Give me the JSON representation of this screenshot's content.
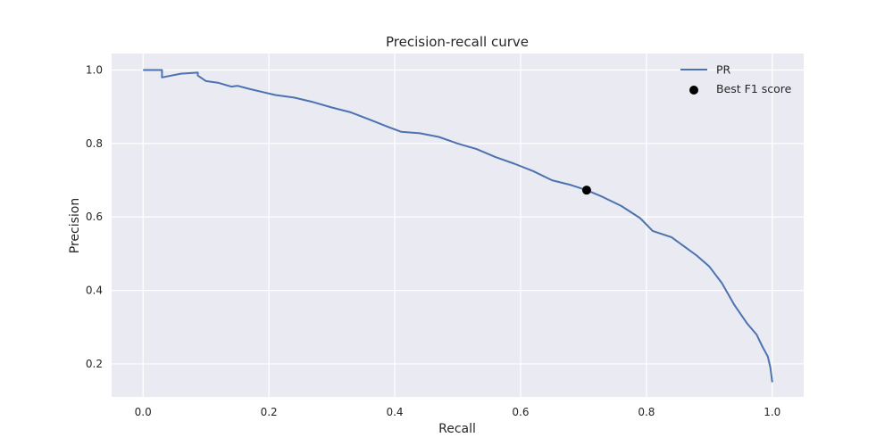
{
  "chart_data": {
    "type": "line",
    "title": "Precision-recall curve",
    "xlabel": "Recall",
    "ylabel": "Precision",
    "xlim": [
      -0.05,
      1.05
    ],
    "ylim": [
      0.11,
      1.045
    ],
    "x_ticks": [
      0.0,
      0.2,
      0.4,
      0.6,
      0.8,
      1.0
    ],
    "x_tick_labels": [
      "0.0",
      "0.2",
      "0.4",
      "0.6",
      "0.8",
      "1.0"
    ],
    "y_ticks": [
      0.2,
      0.4,
      0.6,
      0.8,
      1.0
    ],
    "y_tick_labels": [
      "0.2",
      "0.4",
      "0.6",
      "0.8",
      "1.0"
    ],
    "grid": true,
    "legend_position": "top-right",
    "colors": {
      "background": "#eaeaf2",
      "grid": "#ffffff",
      "line": "#4c72b0",
      "marker": "#000000"
    },
    "series": [
      {
        "name": "PR",
        "kind": "line",
        "x": [
          0.0,
          0.03,
          0.03,
          0.06,
          0.087,
          0.087,
          0.1,
          0.12,
          0.14,
          0.15,
          0.17,
          0.19,
          0.21,
          0.24,
          0.27,
          0.3,
          0.33,
          0.36,
          0.39,
          0.41,
          0.44,
          0.47,
          0.5,
          0.53,
          0.56,
          0.59,
          0.62,
          0.65,
          0.68,
          0.705,
          0.73,
          0.76,
          0.79,
          0.81,
          0.84,
          0.86,
          0.88,
          0.9,
          0.92,
          0.94,
          0.96,
          0.975,
          0.985,
          0.993,
          0.997,
          1.0
        ],
        "y": [
          1.0,
          1.0,
          0.98,
          0.99,
          0.993,
          0.985,
          0.97,
          0.965,
          0.955,
          0.957,
          0.948,
          0.94,
          0.932,
          0.925,
          0.913,
          0.898,
          0.885,
          0.865,
          0.845,
          0.832,
          0.828,
          0.818,
          0.8,
          0.785,
          0.763,
          0.745,
          0.725,
          0.7,
          0.687,
          0.673,
          0.655,
          0.63,
          0.597,
          0.562,
          0.545,
          0.52,
          0.495,
          0.465,
          0.42,
          0.36,
          0.31,
          0.28,
          0.245,
          0.22,
          0.19,
          0.15
        ]
      },
      {
        "name": "Best F1 score",
        "kind": "scatter",
        "x": [
          0.705
        ],
        "y": [
          0.673
        ]
      }
    ]
  }
}
